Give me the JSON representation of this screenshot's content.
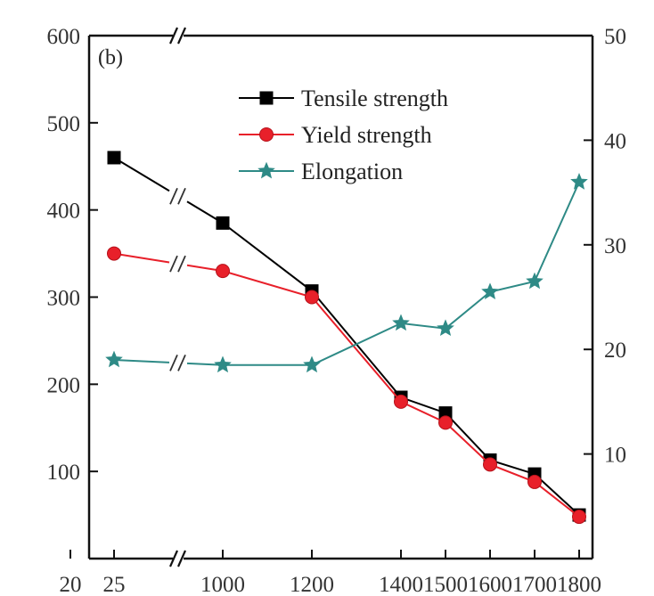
{
  "chart_data": {
    "type": "line",
    "panel_label": "(b)",
    "x_tick_labels": [
      "20",
      "25",
      "1000",
      "1200",
      "1400",
      "1500",
      "1600",
      "1700",
      "1800"
    ],
    "x": [
      25,
      1000,
      1200,
      1400,
      1500,
      1600,
      1700,
      1800
    ],
    "left_axis": {
      "ylim": [
        0,
        600
      ],
      "ticks": [
        100,
        200,
        300,
        400,
        500,
        600
      ]
    },
    "right_axis": {
      "ylim": [
        0,
        50
      ],
      "ticks": [
        10,
        20,
        30,
        40,
        50
      ]
    },
    "series": [
      {
        "name": "Tensile strength",
        "axis": "left",
        "color": "#000000",
        "marker": "square",
        "values": [
          460,
          385,
          307,
          185,
          167,
          113,
          97,
          50
        ]
      },
      {
        "name": "Yield strength",
        "axis": "left",
        "color": "#e8202a",
        "marker": "circle",
        "values": [
          350,
          330,
          300,
          180,
          156,
          108,
          88,
          48
        ]
      },
      {
        "name": "Elongation",
        "axis": "right",
        "color": "#2e8a86",
        "marker": "star",
        "values": [
          19,
          18.5,
          18.5,
          22.5,
          22,
          25.5,
          26.5,
          36
        ]
      }
    ],
    "legend_position": "top-center",
    "grid": false,
    "axis_break": "between 25 and 1000"
  }
}
